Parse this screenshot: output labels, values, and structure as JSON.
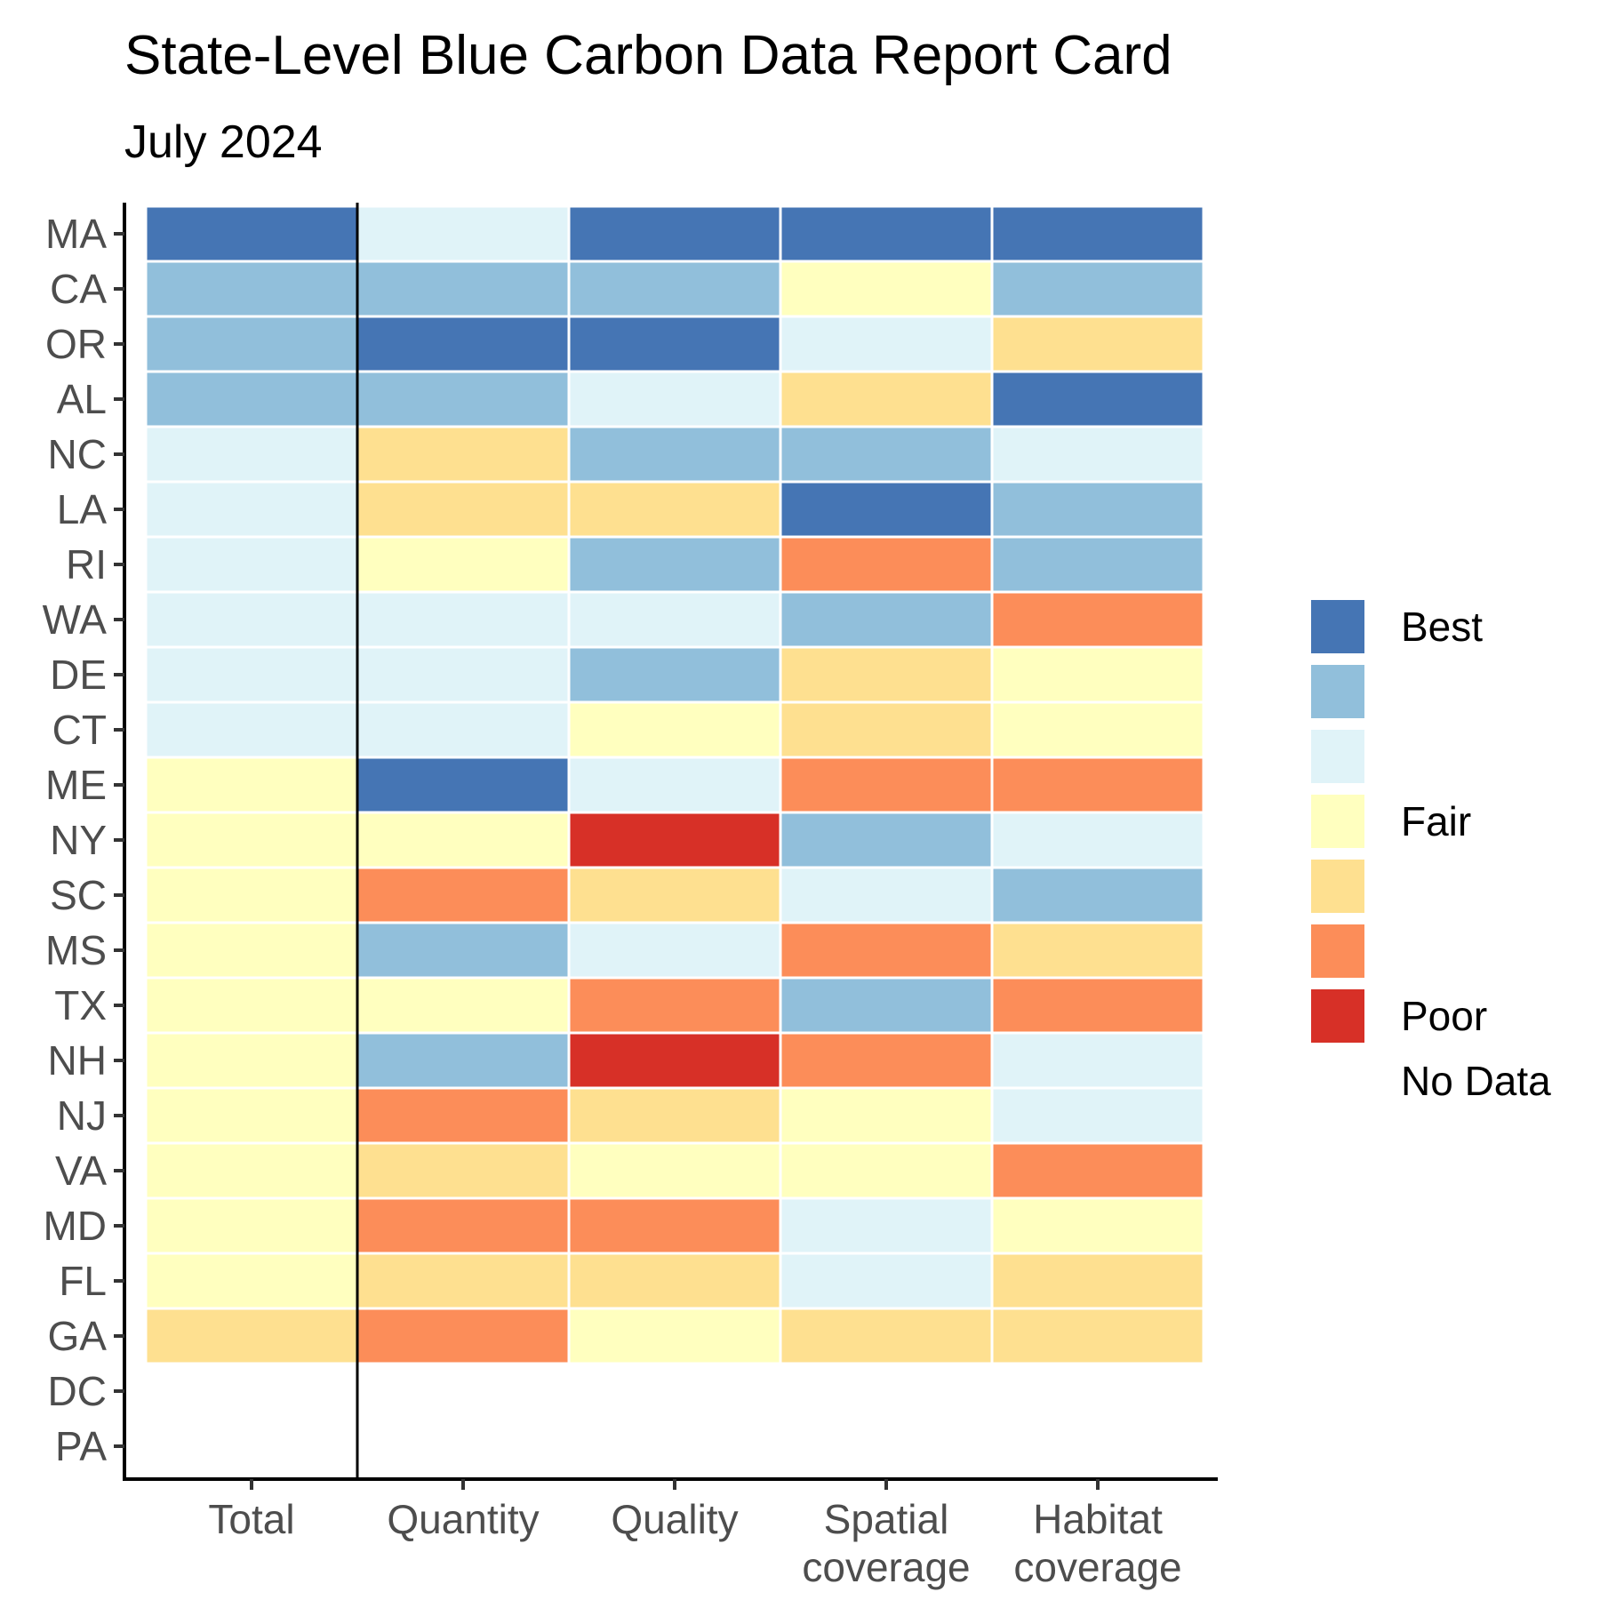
{
  "chart_data": {
    "type": "heatmap",
    "title": "State-Level Blue Carbon Data Report Card",
    "subtitle": "July 2024",
    "xlabel": "",
    "ylabel": "",
    "x_categories": [
      [
        "Total"
      ],
      [
        "Quantity"
      ],
      [
        "Quality"
      ],
      [
        "Spatial",
        "coverage"
      ],
      [
        "Habitat",
        "coverage"
      ]
    ],
    "y_categories": [
      "MA",
      "CA",
      "OR",
      "AL",
      "NC",
      "LA",
      "RI",
      "WA",
      "DE",
      "CT",
      "ME",
      "NY",
      "SC",
      "MS",
      "TX",
      "NH",
      "NJ",
      "VA",
      "MD",
      "FL",
      "GA",
      "DC",
      "PA"
    ],
    "scale_note": "grade 1 = Best ... 7 = Poor; null = No Data",
    "grades": [
      [
        1,
        3,
        1,
        1,
        1
      ],
      [
        2,
        2,
        2,
        4,
        2
      ],
      [
        2,
        1,
        1,
        3,
        5
      ],
      [
        2,
        2,
        3,
        5,
        1
      ],
      [
        3,
        5,
        2,
        2,
        3
      ],
      [
        3,
        5,
        5,
        1,
        2
      ],
      [
        3,
        4,
        2,
        6,
        2
      ],
      [
        3,
        3,
        3,
        2,
        6
      ],
      [
        3,
        3,
        2,
        5,
        4
      ],
      [
        3,
        3,
        4,
        5,
        4
      ],
      [
        4,
        1,
        3,
        6,
        6
      ],
      [
        4,
        4,
        7,
        2,
        3
      ],
      [
        4,
        6,
        5,
        3,
        2
      ],
      [
        4,
        2,
        3,
        6,
        5
      ],
      [
        4,
        4,
        6,
        2,
        6
      ],
      [
        4,
        2,
        7,
        6,
        3
      ],
      [
        4,
        6,
        5,
        4,
        3
      ],
      [
        4,
        5,
        4,
        4,
        6
      ],
      [
        4,
        6,
        6,
        3,
        4
      ],
      [
        4,
        5,
        5,
        3,
        5
      ],
      [
        5,
        6,
        4,
        5,
        5
      ],
      [
        null,
        null,
        null,
        null,
        null
      ],
      [
        null,
        null,
        null,
        null,
        null
      ]
    ],
    "legend": {
      "entries": [
        {
          "grade": 1,
          "label": "Best",
          "color": "#4575b4"
        },
        {
          "grade": 2,
          "label": "",
          "color": "#91bfdb"
        },
        {
          "grade": 3,
          "label": "",
          "color": "#e0f3f8"
        },
        {
          "grade": 4,
          "label": "Fair",
          "color": "#ffffbf"
        },
        {
          "grade": 5,
          "label": "",
          "color": "#fee090"
        },
        {
          "grade": 6,
          "label": "",
          "color": "#fc8d59"
        },
        {
          "grade": 7,
          "label": "Poor",
          "color": "#d73027"
        }
      ],
      "no_data_label": "No Data",
      "position": "right"
    },
    "divider_after_column": 0,
    "grid": false
  }
}
